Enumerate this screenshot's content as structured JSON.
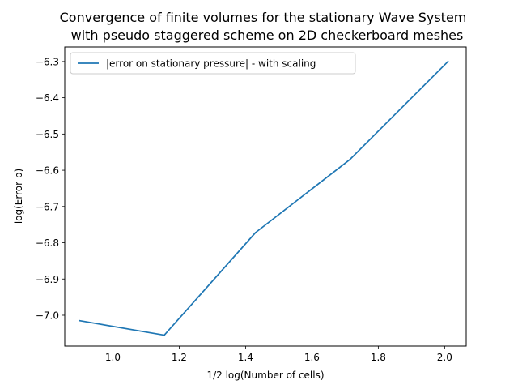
{
  "chart_data": {
    "type": "line",
    "title_lines": [
      "Convergence of finite volumes for the stationary Wave System",
      "with pseudo staggered scheme on 2D checkerboard meshes"
    ],
    "xlabel": "1/2 log(Number of cells)",
    "ylabel": "log(Error p)",
    "xlim": [
      0.855,
      2.065
    ],
    "ylim": [
      -7.085,
      -6.26
    ],
    "xticks": [
      1.0,
      1.2,
      1.4,
      1.6,
      1.8,
      2.0
    ],
    "xtick_labels": [
      "1.0",
      "1.2",
      "1.4",
      "1.6",
      "1.8",
      "2.0"
    ],
    "yticks": [
      -7.0,
      -6.9,
      -6.8,
      -6.7,
      -6.6,
      -6.5,
      -6.4,
      -6.3
    ],
    "ytick_labels": [
      "−7.0",
      "−6.9",
      "−6.8",
      "−6.7",
      "−6.6",
      "−6.5",
      "−6.4",
      "−6.3"
    ],
    "grid": false,
    "legend_position": "upper-left",
    "series": [
      {
        "name": "|error on stationary pressure| - with scaling",
        "color": "#1f77b4",
        "x": [
          0.9,
          1.155,
          1.43,
          1.715,
          2.01
        ],
        "y": [
          -7.015,
          -7.055,
          -6.772,
          -6.57,
          -6.3
        ]
      }
    ]
  }
}
